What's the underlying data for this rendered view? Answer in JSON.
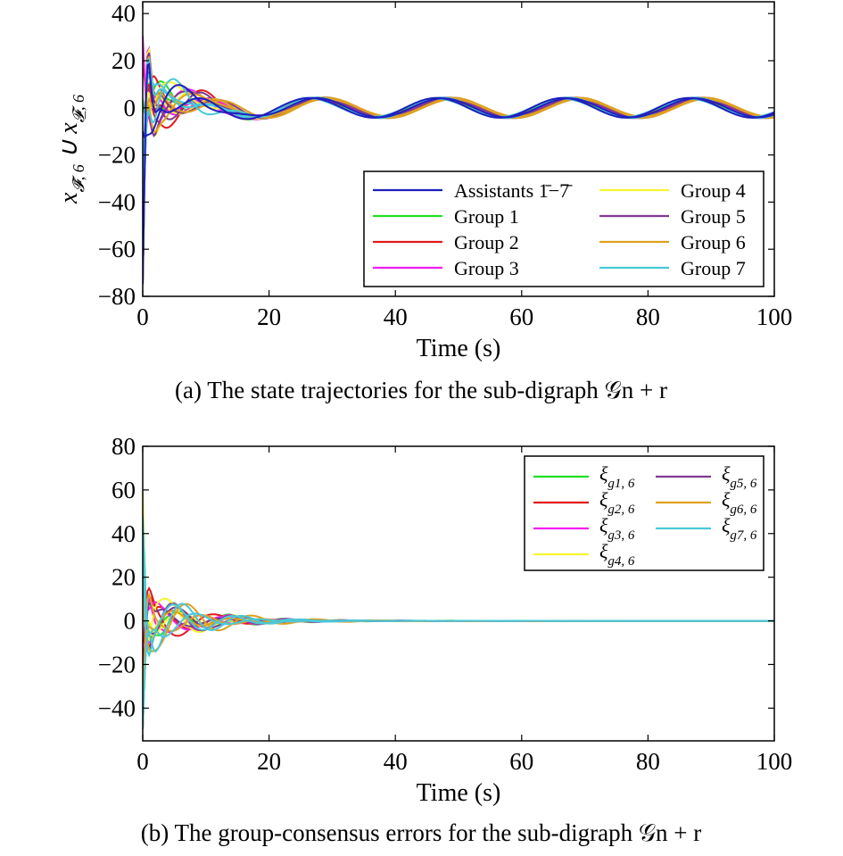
{
  "chart_data": [
    {
      "type": "line",
      "panel": "a",
      "xlabel": "Time (s)",
      "ylabel": "x_{F̄,6} ∪ x_{F̲,6}",
      "xlim": [
        0,
        100
      ],
      "ylim": [
        -80,
        45
      ],
      "xticks": [
        "0",
        "20",
        "40",
        "60",
        "80",
        "100"
      ],
      "yticks": [
        "−80",
        "−60",
        "−40",
        "−20",
        "0",
        "20",
        "40"
      ],
      "caption": "(a) The state trajectories for the sub-digraph 𝒢n + r",
      "legend_position": "lower-right",
      "series": [
        {
          "name": "Assistants 1̄−7̄",
          "color": "#1f1fbf"
        },
        {
          "name": "Group 1",
          "color": "#22e022"
        },
        {
          "name": "Group 2",
          "color": "#e01a1a"
        },
        {
          "name": "Group 3",
          "color": "#f21ff2"
        },
        {
          "name": "Group 4",
          "color": "#f5f530"
        },
        {
          "name": "Group 5",
          "color": "#7e3a8e"
        },
        {
          "name": "Group 6",
          "color": "#e0a020"
        },
        {
          "name": "Group 7",
          "color": "#4ac8d8"
        }
      ],
      "steady_state": {
        "amplitude": 4,
        "period_s": 20,
        "peak_at_s": 47
      }
    },
    {
      "type": "line",
      "panel": "b",
      "xlabel": "Time (s)",
      "ylabel": "",
      "xlim": [
        0,
        100
      ],
      "ylim": [
        -55,
        80
      ],
      "xticks": [
        "0",
        "20",
        "40",
        "60",
        "80",
        "100"
      ],
      "yticks": [
        "−40",
        "−20",
        "0",
        "20",
        "40",
        "60",
        "80"
      ],
      "caption": "(b) The group-consensus errors for the sub-digraph 𝒢n + r",
      "legend_position": "top-right",
      "series": [
        {
          "name": "ξg1, 6",
          "base": "ξ",
          "sub": "g1, 6",
          "color": "#22e022"
        },
        {
          "name": "ξg2, 6",
          "base": "ξ",
          "sub": "g2, 6",
          "color": "#e01a1a"
        },
        {
          "name": "ξg3, 6",
          "base": "ξ",
          "sub": "g3, 6",
          "color": "#f21ff2"
        },
        {
          "name": "ξg4, 6",
          "base": "ξ",
          "sub": "g4, 6",
          "color": "#f5f530"
        },
        {
          "name": "ξg5, 6",
          "base": "ξ",
          "sub": "g5, 6",
          "color": "#7e3a8e"
        },
        {
          "name": "ξg6, 6",
          "base": "ξ",
          "sub": "g6, 6",
          "color": "#e0a020"
        },
        {
          "name": "ξg7, 6",
          "base": "ξ",
          "sub": "g7, 6",
          "color": "#4ac8d8"
        }
      ],
      "converged_value": 0,
      "settling_time_s": 45
    }
  ]
}
